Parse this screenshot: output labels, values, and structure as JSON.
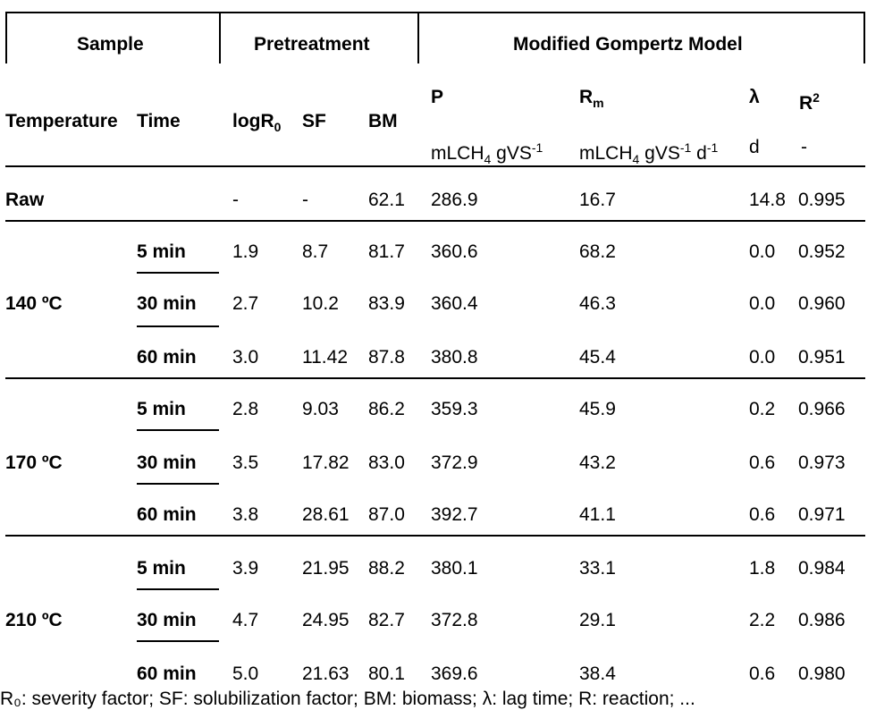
{
  "header": {
    "sample": "Sample",
    "pretreatment": "Pretreatment",
    "model": "Modified Gompertz Model",
    "temperature": "Temperature",
    "time": "Time",
    "logr0": "logR",
    "logr0_sub": "0",
    "sf": "SF",
    "bm": "BM",
    "p": "P",
    "p_unit_a": "mLCH",
    "p_unit_sub": "4",
    "p_unit_b": " gVS",
    "p_unit_sup": "-1",
    "rm": "R",
    "rm_sub": "m",
    "rm_unit_a": "mLCH",
    "rm_unit_sub": "4",
    "rm_unit_b": " gVS",
    "rm_unit_sup1": "-1",
    "rm_unit_c": " d",
    "rm_unit_sup2": "-1",
    "lambda": "λ",
    "lambda_unit": "d",
    "r2": "R",
    "r2_sup": "2",
    "r2_unit": "-"
  },
  "raw": {
    "label": "Raw",
    "logr0": "-",
    "sf": "-",
    "bm": "62.1",
    "p": "286.9",
    "rm": "16.7",
    "lambda": "14.8",
    "r2": "0.995"
  },
  "groups": [
    {
      "temp": "140 ºC",
      "rows": [
        {
          "time": "5 min",
          "logr0": "1.9",
          "sf": "8.7",
          "bm": "81.7",
          "p": "360.6",
          "rm": "68.2",
          "lambda": "0.0",
          "r2": "0.952"
        },
        {
          "time": "30 min",
          "logr0": "2.7",
          "sf": "10.2",
          "bm": "83.9",
          "p": "360.4",
          "rm": "46.3",
          "lambda": "0.0",
          "r2": "0.960"
        },
        {
          "time": "60 min",
          "logr0": "3.0",
          "sf": "11.42",
          "bm": "87.8",
          "p": "380.8",
          "rm": "45.4",
          "lambda": "0.0",
          "r2": "0.951"
        }
      ]
    },
    {
      "temp": "170 ºC",
      "rows": [
        {
          "time": "5 min",
          "logr0": "2.8",
          "sf": "9.03",
          "bm": "86.2",
          "p": "359.3",
          "rm": "45.9",
          "lambda": "0.2",
          "r2": "0.966"
        },
        {
          "time": "30 min",
          "logr0": "3.5",
          "sf": "17.82",
          "bm": "83.0",
          "p": "372.9",
          "rm": "43.2",
          "lambda": "0.6",
          "r2": "0.973"
        },
        {
          "time": "60 min",
          "logr0": "3.8",
          "sf": "28.61",
          "bm": "87.0",
          "p": "392.7",
          "rm": "41.1",
          "lambda": "0.6",
          "r2": "0.971"
        }
      ]
    },
    {
      "temp": "210 ºC",
      "rows": [
        {
          "time": "5 min",
          "logr0": "3.9",
          "sf": "21.95",
          "bm": "88.2",
          "p": "380.1",
          "rm": "33.1",
          "lambda": "1.8",
          "r2": "0.984"
        },
        {
          "time": "30 min",
          "logr0": "4.7",
          "sf": "24.95",
          "bm": "82.7",
          "p": "372.8",
          "rm": "29.1",
          "lambda": "2.2",
          "r2": "0.986"
        },
        {
          "time": "60 min",
          "logr0": "5.0",
          "sf": "21.63",
          "bm": "80.1",
          "p": "369.6",
          "rm": "38.4",
          "lambda": "0.6",
          "r2": "0.980"
        }
      ]
    }
  ],
  "footnote": "R₀: severity factor; SF: solubilization factor; BM: biomass; λ: lag time; R: reaction; ..."
}
